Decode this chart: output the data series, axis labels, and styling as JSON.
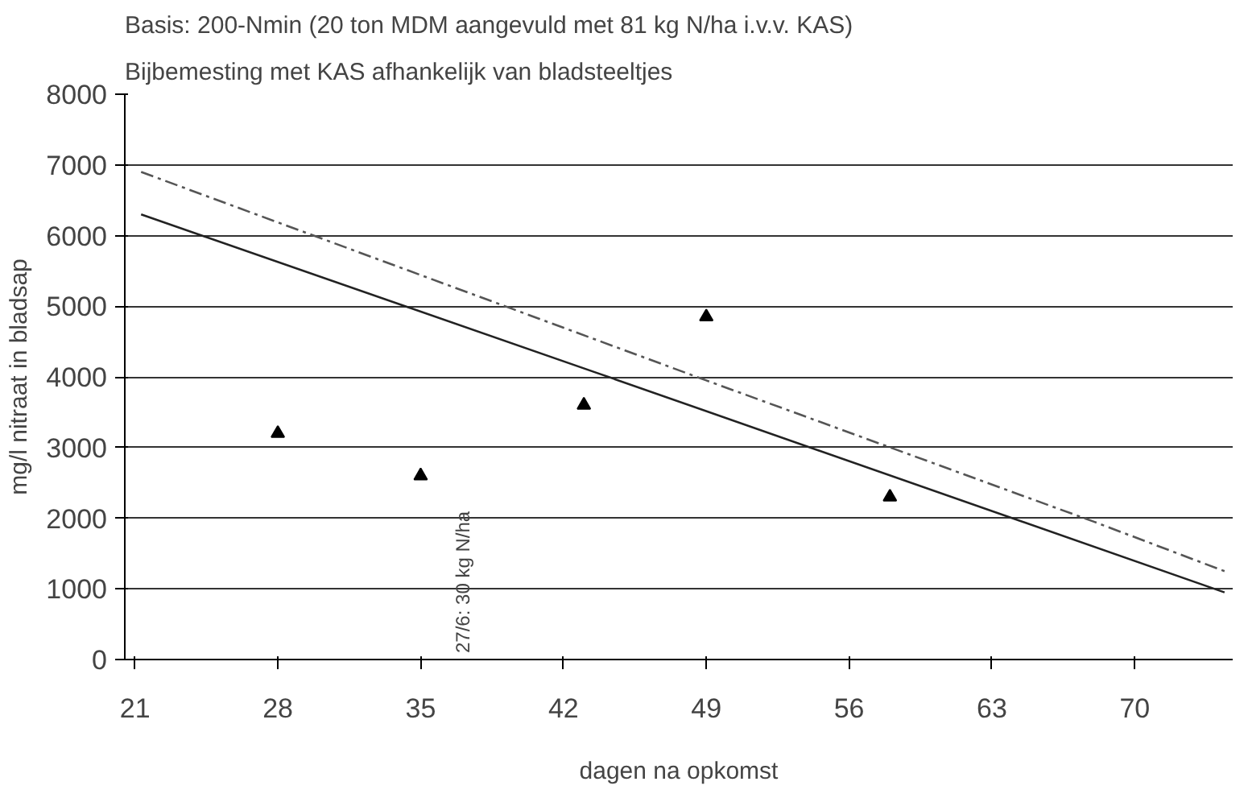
{
  "chart_data": {
    "type": "line",
    "title": "Basis: 200-Nmin (20 ton MDM aangevuld met 81 kg N/ha i.v.v. KAS)",
    "subtitle": "Bijbemesting met KAS afhankelijk van bladsteeltjes",
    "xlabel": "dagen na opkomst",
    "ylabel": "mg/l nitraat in bladsap",
    "xlim": [
      20.5,
      74.8
    ],
    "ylim": [
      0,
      8000
    ],
    "xticks": [
      21,
      28,
      35,
      42,
      49,
      56,
      63,
      70
    ],
    "yticks": [
      0,
      1000,
      2000,
      3000,
      4000,
      5000,
      6000,
      7000,
      8000
    ],
    "grid": "y",
    "series": [
      {
        "color": "#555555",
        "line_style": "dashed",
        "x": [
          21.3,
          49,
          68,
          74.4
        ],
        "values": [
          6900,
          3950,
          1950,
          1250
        ]
      },
      {
        "color": "#222222",
        "line_style": "solid",
        "x": [
          21.3,
          43.7,
          74.4
        ],
        "values": [
          6300,
          4050,
          950
        ]
      },
      {
        "type": "scatter",
        "color": "#000000",
        "marker": "triangle",
        "x": [
          28,
          35,
          43,
          49,
          58
        ],
        "values": [
          3200,
          2600,
          3600,
          4850,
          2300
        ]
      }
    ],
    "annotations": [
      "27/6: 30 kg N/ha"
    ]
  }
}
